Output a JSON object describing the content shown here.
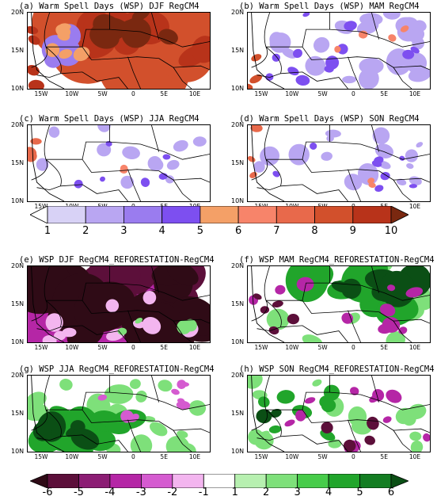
{
  "panels": [
    {
      "id": "a",
      "title": "(a) Warm Spell Days (WSP) DJF RegCM4",
      "kind": "wsp",
      "theme": "djf"
    },
    {
      "id": "b",
      "title": "(b) Warm Spell Days (WSP) MAM RegCM4",
      "kind": "wsp",
      "theme": "mam"
    },
    {
      "id": "c",
      "title": "(c) Warm Spell Days (WSP) JJA RegCM4",
      "kind": "wsp",
      "theme": "jja"
    },
    {
      "id": "d",
      "title": "(d) Warm Spell Days (WSP) SON RegCM4",
      "kind": "wsp",
      "theme": "son"
    },
    {
      "id": "e",
      "title": "(e) WSP DJF RegCM4_REFORESTATION-RegCM4",
      "kind": "diff",
      "theme": "djf"
    },
    {
      "id": "f",
      "title": "(f) WSP MAM RegCM4_REFORESTATION-RegCM4",
      "kind": "diff",
      "theme": "mam"
    },
    {
      "id": "g",
      "title": "(g) WSP JJA RegCM4_REFORESTATION-RegCM4",
      "kind": "diff",
      "theme": "jja"
    },
    {
      "id": "h",
      "title": "(h) WSP SON RegCM4_REFORESTATION-RegCM4",
      "kind": "diff",
      "theme": "son"
    }
  ],
  "axes": {
    "yticks": [
      "20N",
      "15N",
      "10N"
    ],
    "xticks": [
      "15W",
      "10W",
      "5W",
      "0",
      "5E",
      "10E"
    ]
  },
  "colorbar_wsp": {
    "labels": [
      "1",
      "2",
      "3",
      "4",
      "5",
      "6",
      "7",
      "8",
      "9",
      "10"
    ],
    "colors": [
      "#ffffff",
      "#d8d2f6",
      "#b9a6f2",
      "#9a7cef",
      "#7d4ff0",
      "#f4a067",
      "#f7846a",
      "#e8694b",
      "#d2502c",
      "#b8331a",
      "#7a2810"
    ]
  },
  "colorbar_diff": {
    "labels": [
      "-6",
      "-5",
      "-4",
      "-3",
      "-2",
      "-1",
      "1",
      "2",
      "3",
      "4",
      "5",
      "6"
    ],
    "colors": [
      "#2f0b16",
      "#5c0f3a",
      "#8c1d74",
      "#b526a6",
      "#d55bd0",
      "#f3b5ef",
      "#ffffff",
      "#b7f0b0",
      "#7ee07a",
      "#47cc4a",
      "#21a52b",
      "#137d22",
      "#0b4f15"
    ]
  }
}
